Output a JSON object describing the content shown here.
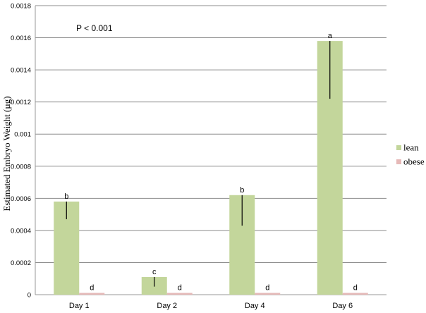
{
  "chart_data": {
    "type": "bar",
    "title": "",
    "xlabel": "",
    "ylabel": "Estimated Embryo Weight (µg)",
    "categories": [
      "Day 1",
      "Day 2",
      "Day 4",
      "Day 6"
    ],
    "ylim": [
      0,
      0.0018
    ],
    "yticks": [
      0,
      0.0002,
      0.0004,
      0.0006,
      0.0008,
      0.001,
      0.0012,
      0.0014,
      0.0016,
      0.0018
    ],
    "ytick_labels": [
      "0",
      "0.0002",
      "0.0004",
      "0.0006",
      "0.0008",
      "0.001",
      "0.0012",
      "0.0014",
      "0.0016",
      "0.0018"
    ],
    "grid": true,
    "legend_position": "right",
    "annotation": "P < 0.001",
    "series": [
      {
        "name": "lean",
        "color": "#c3d69b",
        "values": [
          0.00058,
          0.00011,
          0.00062,
          0.00158
        ],
        "error_low": [
          0.00047,
          5e-05,
          0.00043,
          0.00122
        ],
        "significance": [
          "b",
          "c",
          "b",
          "a"
        ]
      },
      {
        "name": "obese",
        "color": "#e6b9b8",
        "values": [
          8e-06,
          8e-06,
          8e-06,
          8e-06
        ],
        "error_low": [
          8e-06,
          8e-06,
          8e-06,
          8e-06
        ],
        "significance": [
          "d",
          "d",
          "d",
          "d"
        ]
      }
    ]
  }
}
